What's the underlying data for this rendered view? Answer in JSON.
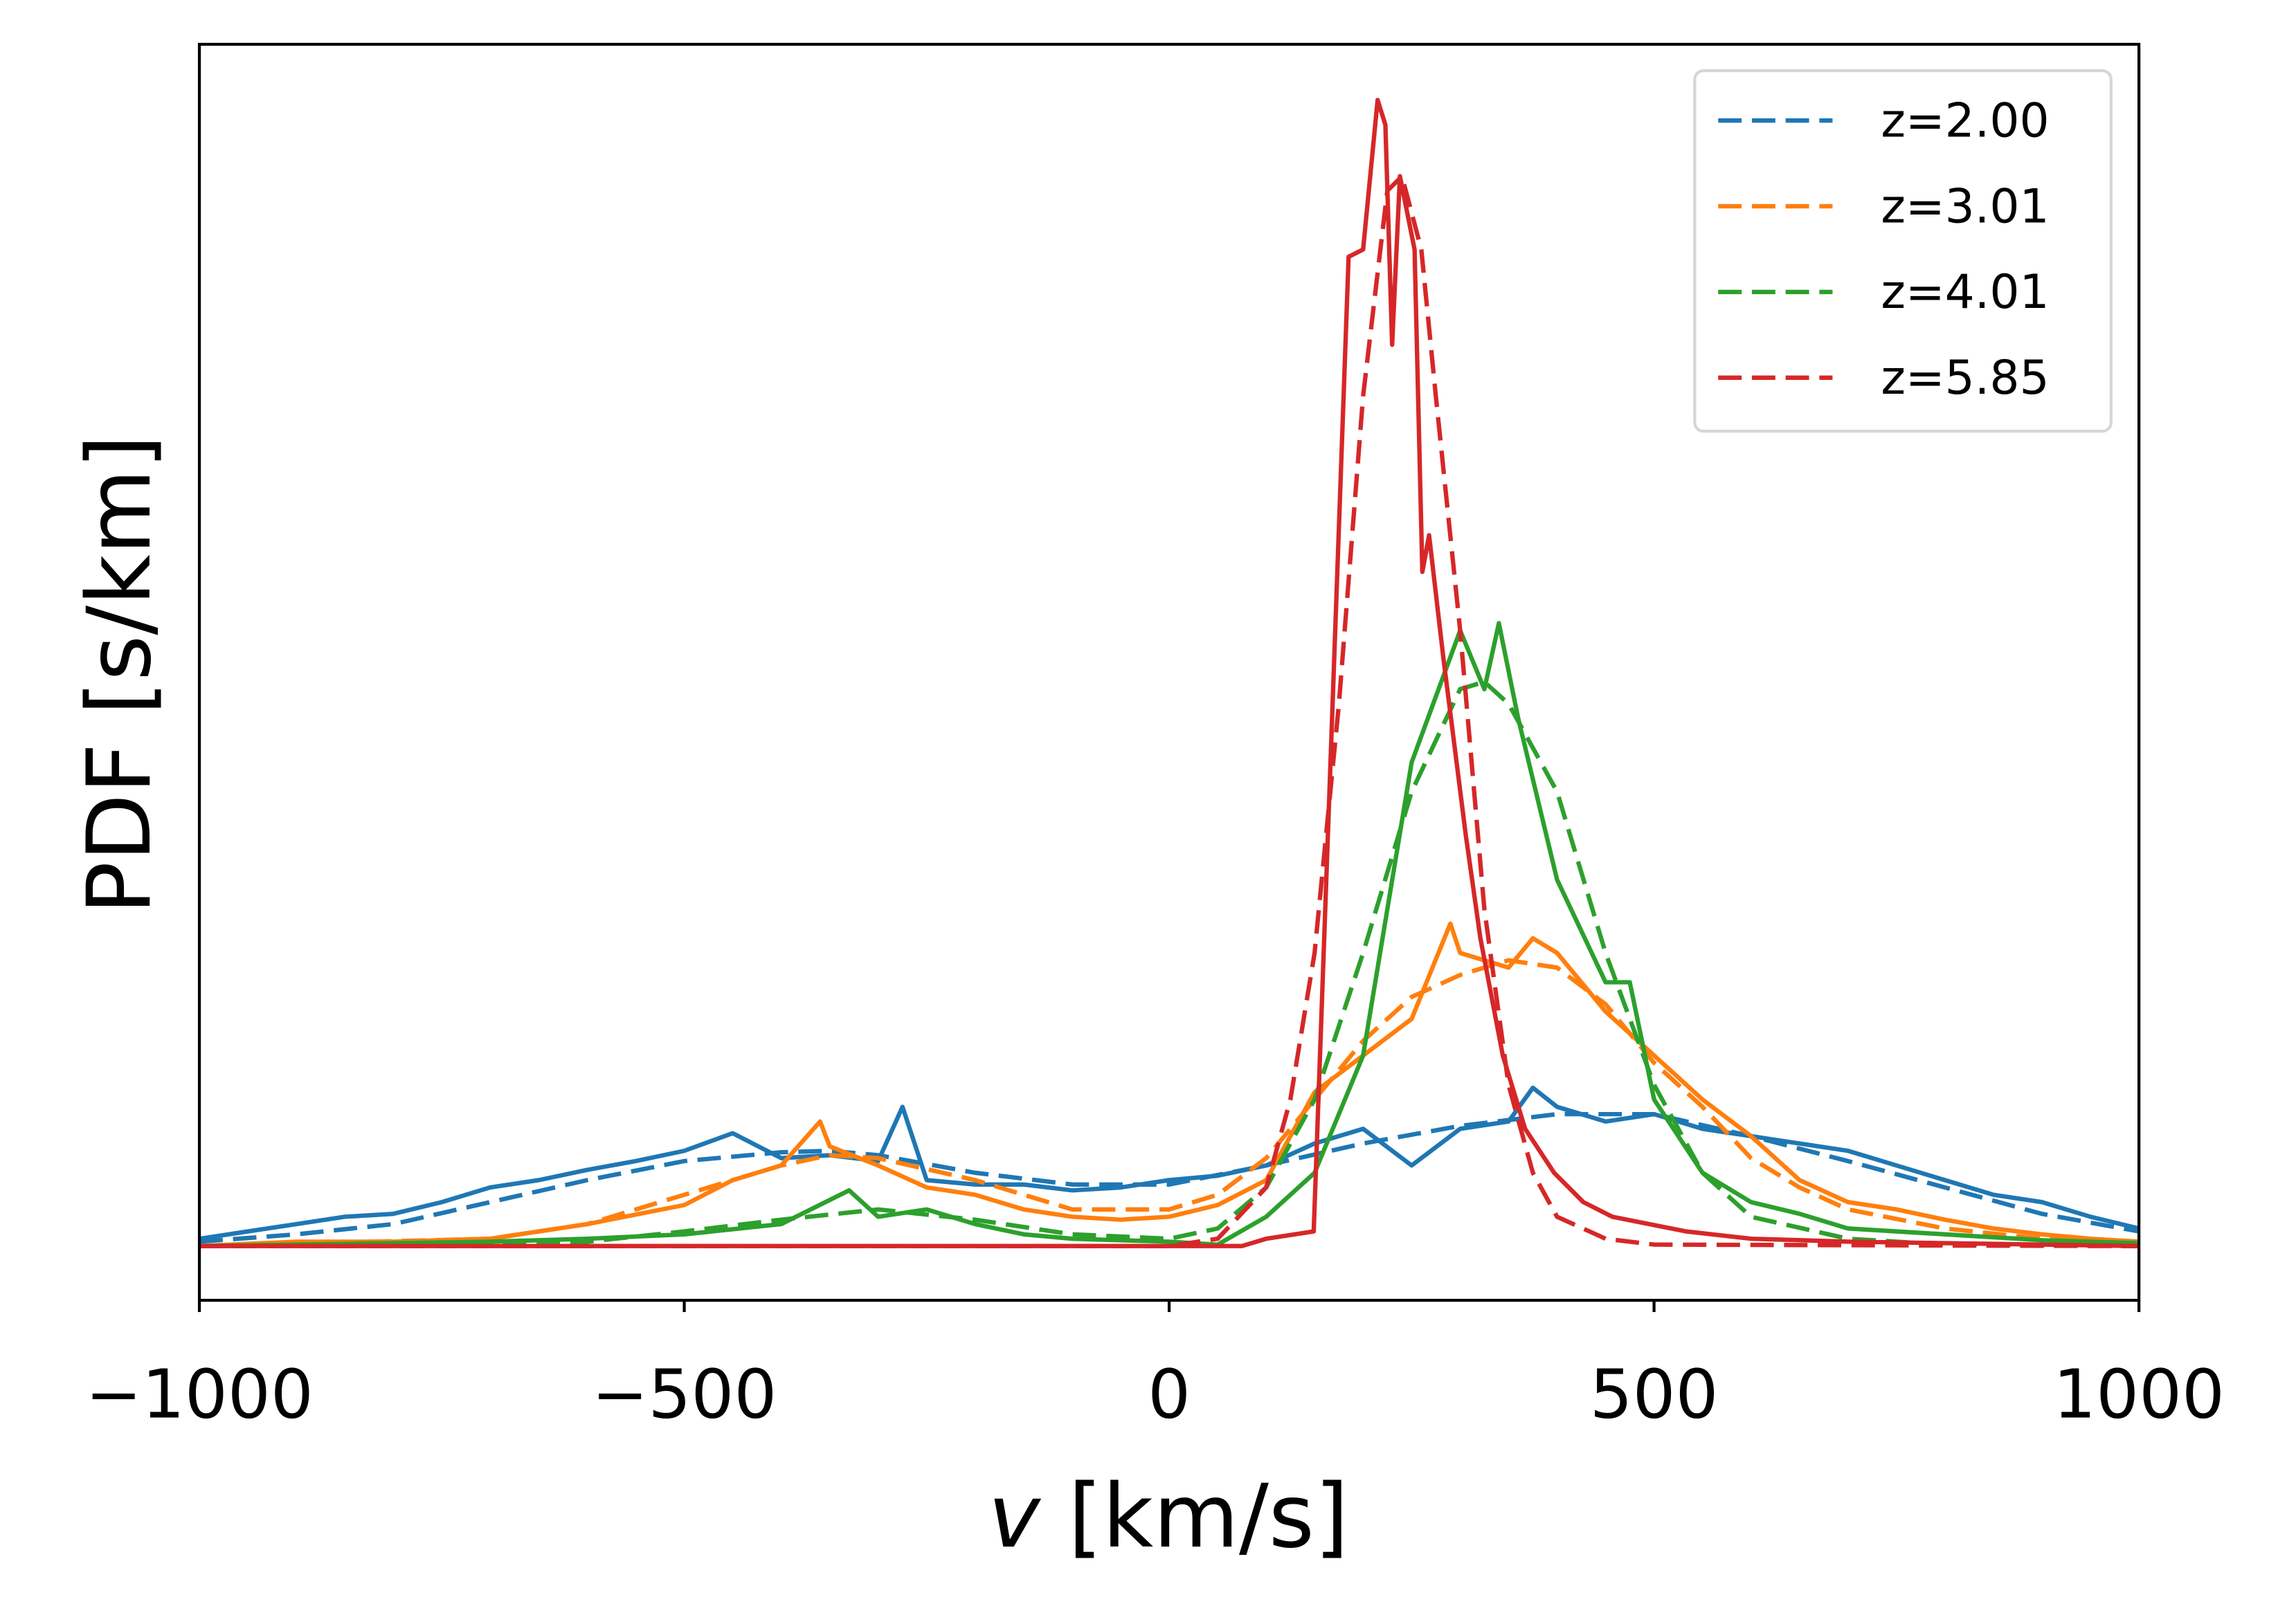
{
  "chart_data": {
    "type": "line",
    "title": "",
    "xlabel_italic": "v",
    "xlabel_rest": " [km/s]",
    "ylabel": "PDF [s/km]",
    "xlim": [
      -1000,
      1000
    ],
    "ylim": [
      -0.00037,
      0.0082
    ],
    "x_ticks": [
      -1000,
      -500,
      0,
      500,
      1000
    ],
    "x_tick_labels": [
      "−1000",
      "−500",
      "0",
      "500",
      "1000"
    ],
    "y_ticks_shown": false,
    "grid": false,
    "legend_placement": "top-right",
    "series": [
      {
        "name": "z=2.00",
        "color": "#1f77b4",
        "data": {
          "x": [
            -1000,
            -950,
            -900,
            -850,
            -800,
            -750,
            -700,
            -650,
            -600,
            -550,
            -500,
            -450,
            -400,
            -350,
            -300,
            -275,
            -250,
            -200,
            -150,
            -100,
            -50,
            0,
            50,
            100,
            150,
            200,
            250,
            300,
            350,
            375,
            400,
            450,
            500,
            550,
            600,
            650,
            700,
            750,
            800,
            850,
            900,
            950,
            1000
          ],
          "y": [
            5e-05,
            0.0001,
            0.00015,
            0.0002,
            0.00022,
            0.0003,
            0.0004,
            0.00045,
            0.00052,
            0.00058,
            0.00065,
            0.00077,
            0.0006,
            0.00062,
            0.00058,
            0.00095,
            0.00045,
            0.00042,
            0.00042,
            0.00038,
            0.0004,
            0.00045,
            0.00048,
            0.00055,
            0.0007,
            0.0008,
            0.00055,
            0.0008,
            0.00085,
            0.00108,
            0.00095,
            0.00085,
            0.0009,
            0.0008,
            0.00075,
            0.0007,
            0.00065,
            0.00055,
            0.00045,
            0.00035,
            0.0003,
            0.0002,
            0.00012
          ]
        },
        "fit": {
          "x": [
            -1000,
            -900,
            -800,
            -700,
            -600,
            -500,
            -400,
            -350,
            -300,
            -200,
            -100,
            0,
            100,
            200,
            300,
            400,
            500,
            600,
            700,
            800,
            900,
            1000
          ],
          "y": [
            3e-05,
            8e-05,
            0.00015,
            0.0003,
            0.00045,
            0.00058,
            0.00064,
            0.00065,
            0.00062,
            0.0005,
            0.00042,
            0.00042,
            0.00055,
            0.0007,
            0.00082,
            0.0009,
            0.0009,
            0.00075,
            0.00058,
            0.0004,
            0.00022,
            0.0001
          ]
        }
      },
      {
        "name": "z=3.01",
        "color": "#ff7f0e",
        "data": {
          "x": [
            -1000,
            -900,
            -800,
            -700,
            -600,
            -500,
            -450,
            -400,
            -360,
            -350,
            -300,
            -250,
            -200,
            -150,
            -100,
            -50,
            0,
            50,
            100,
            150,
            200,
            250,
            290,
            300,
            350,
            375,
            400,
            450,
            500,
            550,
            600,
            650,
            700,
            750,
            800,
            850,
            900,
            950,
            1000
          ],
          "y": [
            0,
            3e-05,
            3e-05,
            5e-05,
            0.00015,
            0.00028,
            0.00045,
            0.00055,
            0.00085,
            0.00068,
            0.00055,
            0.0004,
            0.00035,
            0.00025,
            0.0002,
            0.00018,
            0.0002,
            0.00028,
            0.00045,
            0.00105,
            0.0013,
            0.00155,
            0.0022,
            0.002,
            0.0019,
            0.0021,
            0.002,
            0.0016,
            0.0013,
            0.001,
            0.00075,
            0.00045,
            0.0003,
            0.00025,
            0.00018,
            0.00012,
            8e-05,
            5e-05,
            3e-05
          ]
        },
        "fit": {
          "x": [
            -1000,
            -700,
            -600,
            -500,
            -400,
            -350,
            -300,
            -200,
            -100,
            0,
            50,
            100,
            150,
            200,
            250,
            300,
            350,
            400,
            450,
            500,
            550,
            600,
            650,
            700,
            800,
            900,
            1000
          ],
          "y": [
            0,
            5e-05,
            0.00015,
            0.00035,
            0.00055,
            0.00062,
            0.0006,
            0.00045,
            0.00025,
            0.00025,
            0.00035,
            0.0006,
            0.001,
            0.0014,
            0.0017,
            0.00185,
            0.00195,
            0.0019,
            0.00165,
            0.00125,
            0.00095,
            0.0006,
            0.0004,
            0.00025,
            0.00012,
            5e-05,
            2e-05
          ]
        }
      },
      {
        "name": "z=4.01",
        "color": "#2ca02c",
        "data": {
          "x": [
            -1000,
            -700,
            -600,
            -500,
            -400,
            -330,
            -300,
            -250,
            -200,
            -150,
            -100,
            0,
            50,
            100,
            150,
            200,
            250,
            300,
            325,
            340,
            360,
            400,
            450,
            475,
            500,
            550,
            600,
            650,
            700,
            800,
            900,
            1000
          ],
          "y": [
            0,
            3e-05,
            5e-05,
            8e-05,
            0.00015,
            0.00038,
            0.0002,
            0.00025,
            0.00015,
            8e-05,
            5e-05,
            3e-05,
            1e-05,
            0.0002,
            0.0005,
            0.0013,
            0.0033,
            0.0042,
            0.0038,
            0.00425,
            0.0036,
            0.0025,
            0.0018,
            0.0018,
            0.001,
            0.0005,
            0.0003,
            0.00022,
            0.00012,
            8e-05,
            4e-05,
            2e-05
          ]
        },
        "fit": {
          "x": [
            -1000,
            -600,
            -500,
            -400,
            -300,
            -200,
            -100,
            0,
            50,
            100,
            150,
            200,
            250,
            300,
            325,
            350,
            400,
            450,
            500,
            550,
            600,
            700,
            800,
            1000
          ],
          "y": [
            0,
            3e-05,
            0.0001,
            0.00018,
            0.00025,
            0.00018,
            8e-05,
            5e-05,
            0.00012,
            0.0004,
            0.001,
            0.002,
            0.0031,
            0.0038,
            0.00385,
            0.0037,
            0.0031,
            0.002,
            0.0011,
            0.0005,
            0.0002,
            5e-05,
            1e-05,
            0
          ]
        }
      },
      {
        "name": "z=5.85",
        "color": "#d62728",
        "data": {
          "x": [
            -1000,
            0,
            75,
            100,
            149,
            185,
            200,
            215,
            223,
            230,
            238,
            253,
            261,
            268,
            283,
            306,
            321,
            344,
            367,
            397,
            427,
            457,
            533,
            600,
            700,
            800,
            900,
            1000
          ],
          "y": [
            0,
            0,
            0,
            5e-05,
            0.0001,
            0.00675,
            0.0068,
            0.00782,
            0.00765,
            0.00615,
            0.0073,
            0.0068,
            0.0046,
            0.00485,
            0.004,
            0.0028,
            0.0021,
            0.0013,
            0.0008,
            0.0005,
            0.0003,
            0.0002,
            0.0001,
            5e-05,
            3e-05,
            2e-05,
            1e-05,
            0
          ]
        },
        "fit": {
          "x": [
            -1000,
            0,
            50,
            100,
            125,
            150,
            175,
            200,
            225,
            240,
            260,
            275,
            300,
            325,
            350,
            375,
            400,
            450,
            500,
            1000
          ],
          "y": [
            0,
            0,
            5e-05,
            0.0004,
            0.001,
            0.002,
            0.0037,
            0.0058,
            0.0072,
            0.0073,
            0.0068,
            0.0058,
            0.0042,
            0.0023,
            0.0011,
            0.0005,
            0.0002,
            5e-05,
            1e-05,
            0
          ]
        }
      }
    ]
  }
}
